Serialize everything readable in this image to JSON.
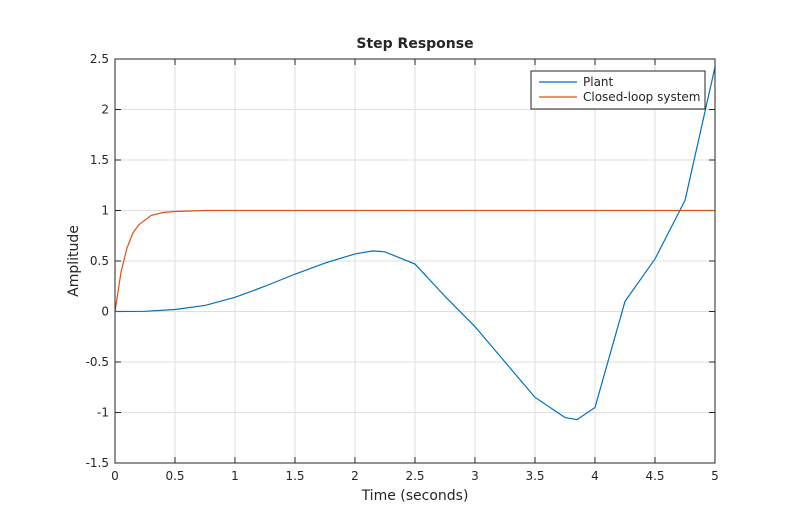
{
  "chart_data": {
    "type": "line",
    "title": "Step Response",
    "x_label": "Time (seconds)",
    "y_label": "Amplitude",
    "xlim": [
      0,
      5
    ],
    "ylim": [
      -1.5,
      2.5
    ],
    "xticks": [
      0,
      0.5,
      1,
      1.5,
      2,
      2.5,
      3,
      3.5,
      4,
      4.5,
      5
    ],
    "yticks": [
      -1.5,
      -1,
      -0.5,
      0,
      0.5,
      1,
      1.5,
      2,
      2.5
    ],
    "grid": true,
    "legend": "top-right",
    "series": [
      {
        "name": "Plant",
        "color": "#0072bd",
        "x": [
          0,
          0.25,
          0.5,
          0.75,
          1,
          1.25,
          1.5,
          1.75,
          2,
          2.15,
          2.25,
          2.5,
          2.75,
          3,
          3.25,
          3.5,
          3.75,
          3.85,
          4,
          4.25,
          4.5,
          4.75,
          5
        ],
        "values": [
          0,
          0.002,
          0.02,
          0.06,
          0.14,
          0.25,
          0.37,
          0.48,
          0.57,
          0.6,
          0.59,
          0.47,
          0.15,
          -0.15,
          -0.5,
          -0.85,
          -1.05,
          -1.07,
          -0.95,
          0.1,
          0.52,
          1.1,
          2.42
        ]
      },
      {
        "name": "Closed-loop system",
        "color": "#d95319",
        "x": [
          0,
          0.05,
          0.1,
          0.15,
          0.2,
          0.3,
          0.4,
          0.5,
          0.75,
          1,
          5
        ],
        "values": [
          0,
          0.39,
          0.63,
          0.78,
          0.86,
          0.95,
          0.98,
          0.99,
          1,
          1,
          1
        ]
      }
    ]
  }
}
